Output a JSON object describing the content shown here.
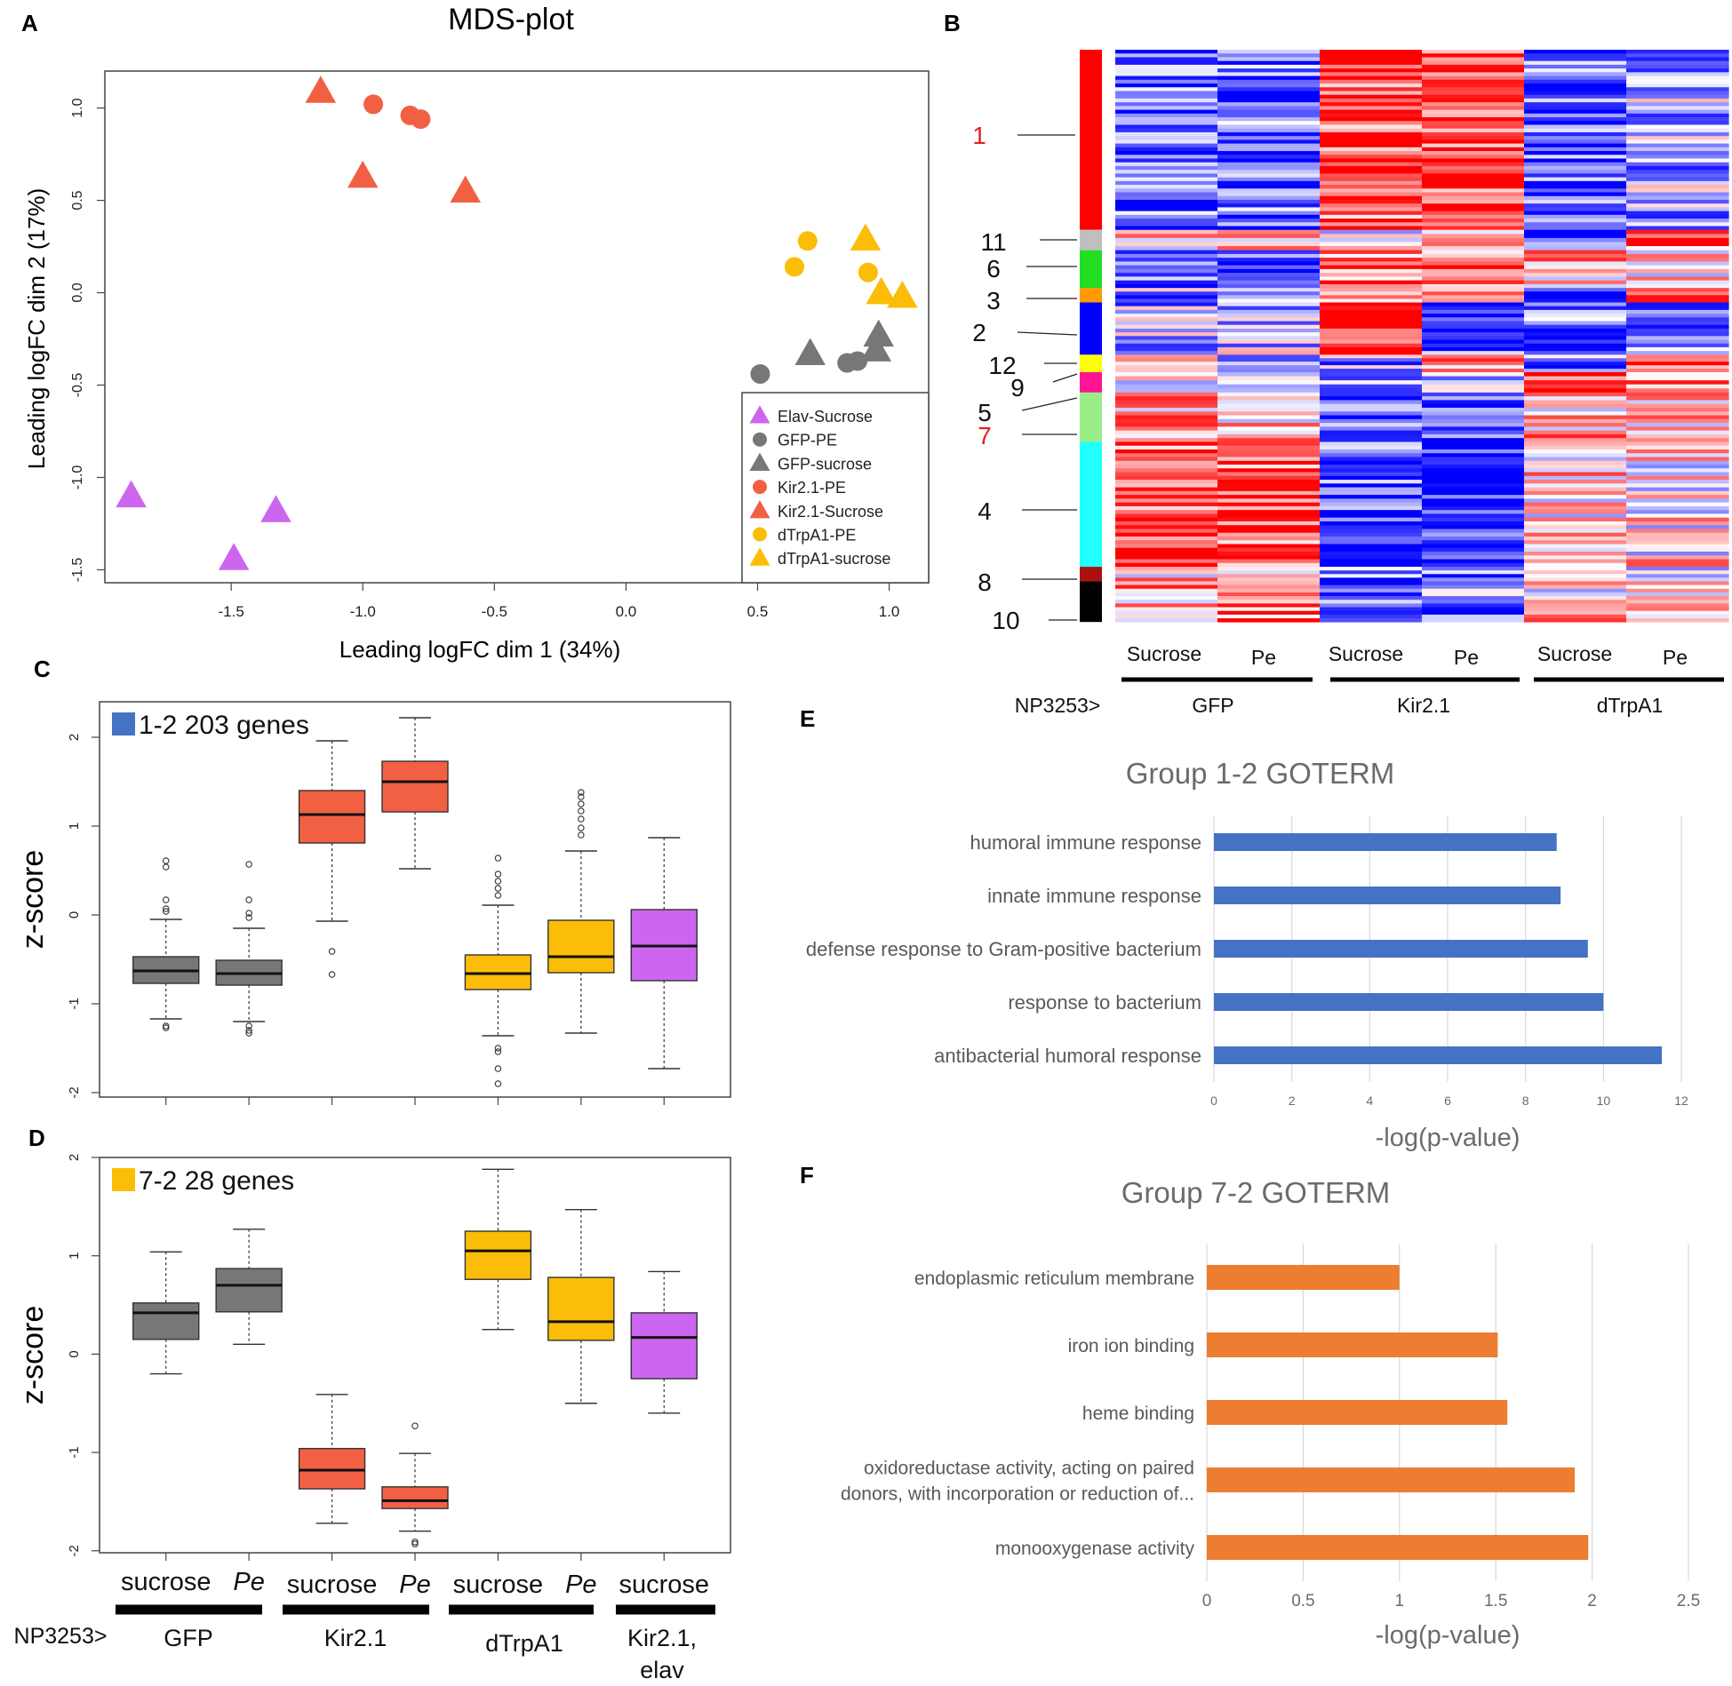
{
  "panel_labels": {
    "A": "A",
    "B": "B",
    "C": "C",
    "D": "D",
    "E": "E",
    "F": "F"
  },
  "colors": {
    "elav": "#cc66ee",
    "gfp": "#777777",
    "kir": "#f26044",
    "trp": "#fbbd08",
    "go12": "#4472c4",
    "go72": "#ed7d31",
    "heat_red": "#ff2020",
    "heat_blue": "#2a2aff"
  },
  "chart_data": [
    {
      "id": "mds",
      "type": "scatter",
      "title": "MDS-plot",
      "xlabel": "Leading logFC dim 1 (34%)",
      "ylabel": "Leading logFC dim 2 (17%)",
      "xlim": [
        -1.98,
        1.15
      ],
      "ylim": [
        -1.57,
        1.2
      ],
      "xticks": [
        -1.5,
        -1.0,
        -0.5,
        0.0,
        0.5,
        1.0
      ],
      "xtick_labels": [
        "-1.5",
        "-1.0",
        "-0.5",
        "0.0",
        "0.5",
        "1.0"
      ],
      "yticks": [
        -1.5,
        -1.0,
        -0.5,
        0.0,
        0.5,
        1.0
      ],
      "ytick_labels": [
        "-1.5",
        "-1.0",
        "-0.5",
        "0.0",
        "0.5",
        "1.0"
      ],
      "series": [
        {
          "name": "Elav-Sucrose",
          "shape": "triangle",
          "color": "#cc66ee",
          "points": [
            [
              -1.88,
              -1.1
            ],
            [
              -1.33,
              -1.18
            ],
            [
              -1.49,
              -1.44
            ]
          ]
        },
        {
          "name": "GFP-PE",
          "shape": "circle",
          "color": "#777777",
          "points": [
            [
              0.51,
              -0.44
            ],
            [
              0.84,
              -0.38
            ],
            [
              0.88,
              -0.37
            ]
          ]
        },
        {
          "name": "GFP-sucrose",
          "shape": "triangle",
          "color": "#777777",
          "points": [
            [
              0.7,
              -0.33
            ],
            [
              0.96,
              -0.23
            ],
            [
              0.95,
              -0.31
            ]
          ]
        },
        {
          "name": "Kir2.1-PE",
          "shape": "circle",
          "color": "#f26044",
          "points": [
            [
              -0.96,
              1.02
            ],
            [
              -0.82,
              0.96
            ],
            [
              -0.78,
              0.94
            ]
          ]
        },
        {
          "name": "Kir2.1-Sucrose",
          "shape": "triangle",
          "color": "#f26044",
          "points": [
            [
              -1.16,
              1.09
            ],
            [
              -1.0,
              0.63
            ],
            [
              -0.61,
              0.55
            ]
          ]
        },
        {
          "name": "dTrpA1-PE",
          "shape": "circle",
          "color": "#fbbd08",
          "points": [
            [
              0.69,
              0.28
            ],
            [
              0.64,
              0.14
            ],
            [
              0.92,
              0.11
            ]
          ]
        },
        {
          "name": "dTrpA1-sucrose",
          "shape": "triangle",
          "color": "#fbbd08",
          "points": [
            [
              0.91,
              0.29
            ],
            [
              0.97,
              0.0
            ],
            [
              1.05,
              -0.02
            ]
          ]
        }
      ]
    },
    {
      "id": "heatmap",
      "type": "heatmap",
      "cluster_labels": [
        "1",
        "11",
        "6",
        "3",
        "2",
        "12",
        "9",
        "5",
        "7",
        "4",
        "8",
        "10"
      ],
      "cluster_colors": [
        "#ff0000",
        "#bfbfbf",
        "#22dd22",
        "#ff9900",
        "#0000ff",
        "#ffff00",
        "#ff1493",
        "#99ee88",
        "#99ee88",
        "#22ffff",
        "#aa1111",
        "#000000"
      ],
      "cluster_sizes": [
        0.31,
        0.035,
        0.065,
        0.025,
        0.09,
        0.03,
        0.035,
        0.0,
        0.085,
        0.215,
        0.025,
        0.07
      ],
      "highlight_labels": [
        "1",
        "7"
      ],
      "columns": [
        "Sucrose",
        "Pe",
        "Sucrose",
        "Pe",
        "Sucrose",
        "Pe"
      ],
      "groups": [
        "GFP",
        "Kir2.1",
        "dTrpA1"
      ],
      "genotype_label": "NP3253>",
      "cluster_pattern": [
        [
          -0.6,
          -0.6,
          0.7,
          0.8,
          -0.6,
          -0.3
        ],
        [
          0.3,
          0.4,
          0.1,
          0.3,
          -0.8,
          0.6
        ],
        [
          -0.7,
          -0.8,
          0.5,
          0.4,
          0.3,
          0.2
        ],
        [
          -0.4,
          -0.6,
          0.4,
          0.6,
          -0.7,
          0.8
        ],
        [
          -0.3,
          -0.2,
          1.0,
          -0.7,
          -0.6,
          -0.6
        ],
        [
          0.3,
          -0.3,
          -0.4,
          0.3,
          -0.5,
          0.5
        ],
        [
          0.2,
          -0.3,
          -0.5,
          -0.4,
          0.6,
          0.4
        ],
        [
          0.0,
          0.0,
          0.0,
          0.0,
          0.0,
          0.0
        ],
        [
          0.3,
          0.2,
          -0.7,
          -0.8,
          0.3,
          0.2
        ],
        [
          0.7,
          0.7,
          -0.7,
          -0.9,
          0.2,
          0.1
        ],
        [
          0.3,
          0.4,
          -0.5,
          -0.4,
          0.1,
          0.0
        ],
        [
          0.3,
          0.6,
          -0.6,
          -0.5,
          0.2,
          0.1
        ]
      ]
    },
    {
      "id": "box12",
      "type": "box",
      "legend_label": "1-2 203 genes",
      "legend_color": "#4472c4",
      "ylabel": "z-score",
      "ylim": [
        -2.05,
        2.4
      ],
      "yticks": [
        -2,
        -1,
        0,
        1,
        2
      ],
      "ytick_labels": [
        "-2",
        "-1",
        "0",
        "1",
        "2"
      ],
      "boxes": [
        {
          "color": "#777777",
          "q1": -0.77,
          "med": -0.63,
          "q3": -0.47,
          "lo": -1.17,
          "hi": -0.05,
          "outliers": [
            0.04,
            0.07,
            0.17,
            0.54,
            0.61,
            -1.25,
            -1.27
          ]
        },
        {
          "color": "#777777",
          "q1": -0.79,
          "med": -0.66,
          "q3": -0.51,
          "lo": -1.2,
          "hi": -0.15,
          "outliers": [
            -0.03,
            0.02,
            0.17,
            0.57,
            -1.25,
            -1.3,
            -1.33
          ]
        },
        {
          "color": "#f26044",
          "q1": 0.81,
          "med": 1.13,
          "q3": 1.4,
          "lo": -0.07,
          "hi": 1.96,
          "outliers": [
            -0.41,
            -0.67
          ]
        },
        {
          "color": "#f26044",
          "q1": 1.16,
          "med": 1.5,
          "q3": 1.73,
          "lo": 0.52,
          "hi": 2.22,
          "outliers": []
        },
        {
          "color": "#fbbd08",
          "q1": -0.84,
          "med": -0.66,
          "q3": -0.45,
          "lo": -1.36,
          "hi": 0.11,
          "outliers": [
            0.22,
            0.3,
            0.38,
            0.46,
            0.64,
            -1.5,
            -1.54,
            -1.73,
            -1.9
          ]
        },
        {
          "color": "#fbbd08",
          "q1": -0.65,
          "med": -0.47,
          "q3": -0.06,
          "lo": -1.33,
          "hi": 0.72,
          "outliers": [
            0.9,
            0.98,
            1.08,
            1.17,
            1.25,
            1.33,
            1.38
          ]
        },
        {
          "color": "#cc66ee",
          "q1": -0.74,
          "med": -0.35,
          "q3": 0.06,
          "lo": -1.73,
          "hi": 0.87,
          "outliers": []
        }
      ]
    },
    {
      "id": "box72",
      "type": "box",
      "legend_label": "7-2 28 genes",
      "legend_color": "#fbbd08",
      "ylabel": "z-score",
      "ylim": [
        -2.02,
        2.0
      ],
      "yticks": [
        -2,
        -1,
        0,
        1,
        2
      ],
      "ytick_labels": [
        "-2",
        "-1",
        "0",
        "1",
        "2"
      ],
      "boxes": [
        {
          "color": "#777777",
          "q1": 0.15,
          "med": 0.42,
          "q3": 0.52,
          "lo": -0.2,
          "hi": 1.04,
          "outliers": []
        },
        {
          "color": "#777777",
          "q1": 0.43,
          "med": 0.7,
          "q3": 0.87,
          "lo": 0.1,
          "hi": 1.27,
          "outliers": []
        },
        {
          "color": "#f26044",
          "q1": -1.37,
          "med": -1.18,
          "q3": -0.96,
          "lo": -1.72,
          "hi": -0.41,
          "outliers": []
        },
        {
          "color": "#f26044",
          "q1": -1.57,
          "med": -1.49,
          "q3": -1.35,
          "lo": -1.8,
          "hi": -1.01,
          "outliers": [
            -0.73,
            -1.91,
            -1.93
          ]
        },
        {
          "color": "#fbbd08",
          "q1": 0.76,
          "med": 1.05,
          "q3": 1.25,
          "lo": 0.25,
          "hi": 1.88,
          "outliers": []
        },
        {
          "color": "#fbbd08",
          "q1": 0.14,
          "med": 0.33,
          "q3": 0.78,
          "lo": -0.5,
          "hi": 1.47,
          "outliers": []
        },
        {
          "color": "#cc66ee",
          "q1": -0.25,
          "med": 0.17,
          "q3": 0.42,
          "lo": -0.6,
          "hi": 0.84,
          "outliers": []
        }
      ],
      "conditions": [
        "sucrose",
        "Pe",
        "sucrose",
        "Pe",
        "sucrose",
        "Pe",
        "sucrose"
      ],
      "italic_conditions": [
        false,
        true,
        false,
        true,
        false,
        true,
        false
      ],
      "groups": [
        "GFP",
        "Kir2.1",
        "dTrpA1",
        "Kir2.1,\nelav"
      ],
      "genotype_label": "NP3253>"
    },
    {
      "id": "go12",
      "type": "bar",
      "orientation": "horizontal",
      "title": "Group 1-2 GOTERM",
      "xlabel": "-log(p-value)",
      "categories": [
        "humoral immune response",
        "innate immune response",
        "defense response to Gram-positive bacterium",
        "response to bacterium",
        "antibacterial humoral response"
      ],
      "values": [
        8.8,
        8.9,
        9.6,
        10.0,
        11.5
      ],
      "xlim": [
        0,
        12
      ],
      "xticks": [
        0,
        2,
        4,
        6,
        8,
        10,
        12
      ],
      "xtick_labels": [
        "0",
        "2",
        "4",
        "6",
        "8",
        "10",
        "12"
      ],
      "color": "#4472c4"
    },
    {
      "id": "go72",
      "type": "bar",
      "orientation": "horizontal",
      "title": "Group 7-2 GOTERM",
      "xlabel": "-log(p-value)",
      "categories": [
        "endoplasmic reticulum membrane",
        "iron ion binding",
        "heme binding",
        "oxidoreductase activity, acting on paired\ndonors, with incorporation or reduction of...",
        "monooxygenase activity"
      ],
      "values": [
        1.0,
        1.51,
        1.56,
        1.91,
        1.98
      ],
      "xlim": [
        0,
        2.5
      ],
      "xticks": [
        0,
        0.5,
        1,
        1.5,
        2,
        2.5
      ],
      "xtick_labels": [
        "0",
        "0.5",
        "1",
        "1.5",
        "2",
        "2.5"
      ],
      "color": "#ed7d31"
    }
  ]
}
